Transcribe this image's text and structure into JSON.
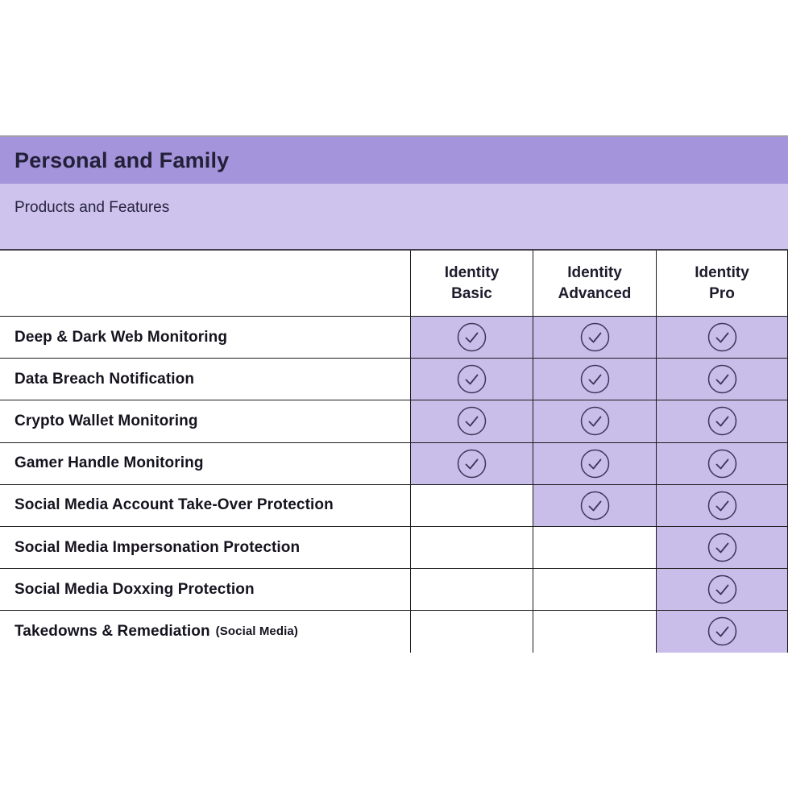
{
  "header": {
    "title": "Personal and Family",
    "subtitle": "Products and Features"
  },
  "table": {
    "feature_column_header": "",
    "columns": [
      "Identity\nBasic",
      "Identity\nAdvanced",
      "Identity\nPro"
    ],
    "column_keys": [
      "basic",
      "advanced",
      "pro"
    ],
    "rows": [
      {
        "feature": "Deep & Dark Web Monitoring",
        "note": "",
        "cells": [
          true,
          true,
          true
        ]
      },
      {
        "feature": "Data Breach Notification",
        "note": "",
        "cells": [
          true,
          true,
          true
        ]
      },
      {
        "feature": "Crypto Wallet Monitoring",
        "note": "",
        "cells": [
          true,
          true,
          true
        ]
      },
      {
        "feature": "Gamer Handle Monitoring",
        "note": "",
        "cells": [
          true,
          true,
          true
        ]
      },
      {
        "feature": "Social Media Account Take-Over Protection",
        "note": "",
        "cells": [
          false,
          true,
          true
        ]
      },
      {
        "feature": "Social Media Impersonation Protection",
        "note": "",
        "cells": [
          false,
          false,
          true
        ]
      },
      {
        "feature": "Social Media Doxxing Protection",
        "note": "",
        "cells": [
          false,
          false,
          true
        ]
      },
      {
        "feature": "Takedowns & Remediation",
        "note": "(Social Media)",
        "cells": [
          false,
          false,
          true
        ]
      }
    ],
    "check_icon": "circled-checkmark"
  },
  "colors": {
    "title_band": "#a494db",
    "subtitle_band": "#cdc3ed",
    "cell_highlight": "#c9bde9",
    "table_border": "#1c1c1c",
    "divider": "#413d49",
    "check_icon": "#3e3659",
    "title_text": "#232038",
    "body_text": "#16131f"
  }
}
